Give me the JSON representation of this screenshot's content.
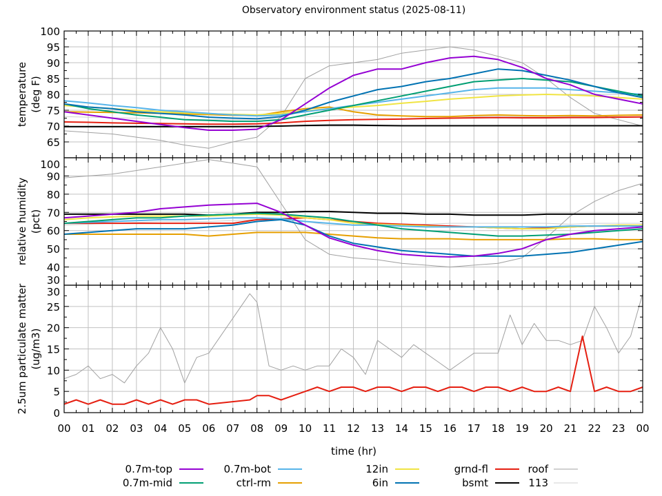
{
  "chart_data": [
    {
      "type": "line",
      "title": "Observatory environment status (2025-08-11)",
      "panel": "temperature",
      "ylabel": [
        "temperature",
        "(deg F)"
      ],
      "ylim": [
        60,
        100
      ],
      "yticks": [
        65,
        70,
        75,
        80,
        85,
        90,
        95,
        100
      ],
      "x": [
        0,
        1,
        2,
        3,
        4,
        5,
        6,
        7,
        8,
        9,
        10,
        11,
        12,
        13,
        14,
        15,
        16,
        17,
        18,
        19,
        20,
        21,
        22,
        23,
        24
      ],
      "series": [
        {
          "name": "0.7m-top",
          "values": [
            74.5,
            73.5,
            72.5,
            71.5,
            70.5,
            69.5,
            68.7,
            68.7,
            69,
            72,
            77,
            82,
            86,
            88,
            88,
            90,
            91.5,
            92,
            91,
            88.5,
            85,
            83,
            80,
            78.5,
            77
          ]
        },
        {
          "name": "0.7m-mid",
          "values": [
            77,
            75.5,
            74.5,
            73.5,
            72.8,
            72,
            71.8,
            71.5,
            71.5,
            72,
            73.5,
            75,
            76.5,
            78,
            79.5,
            81,
            82.5,
            84,
            84.5,
            85,
            84.5,
            84,
            82.5,
            81,
            79.5
          ]
        },
        {
          "name": "0.7m-bot",
          "values": [
            78,
            77.3,
            76.5,
            75.8,
            75,
            74.5,
            74,
            73.5,
            73.2,
            73.5,
            74.5,
            75.5,
            76.5,
            77.5,
            78.5,
            79.5,
            80.5,
            81.5,
            82,
            82,
            82,
            81.5,
            81,
            80.5,
            80
          ]
        },
        {
          "name": "ctrl-rm",
          "values": [
            74.5,
            74.4,
            74.3,
            74.2,
            74,
            73.8,
            73.6,
            73.4,
            73.3,
            74.5,
            75.5,
            76,
            74.5,
            73.5,
            73.2,
            73,
            73,
            73.3,
            73.5,
            73.3,
            73.2,
            73.3,
            73.2,
            73.4,
            73.5
          ]
        },
        {
          "name": "12in",
          "values": [
            76.5,
            76,
            75.5,
            75,
            74.5,
            74.2,
            73.9,
            73.7,
            73.5,
            74,
            74.8,
            75.5,
            76,
            76.5,
            77.2,
            77.8,
            78.5,
            79,
            79.5,
            79.8,
            80,
            79.8,
            79.5,
            79,
            78.5
          ]
        },
        {
          "name": "6in",
          "values": [
            77,
            76,
            75.5,
            74.5,
            74,
            73.5,
            72.8,
            72.5,
            72.3,
            73,
            75,
            77.5,
            79.5,
            81.5,
            82.5,
            84,
            85,
            86.5,
            88,
            87.5,
            86,
            84.5,
            82.5,
            80.5,
            79
          ]
        },
        {
          "name": "grnd-fl",
          "values": [
            71.3,
            71.2,
            71,
            70.9,
            70.8,
            70.7,
            70.6,
            70.6,
            70.7,
            71,
            71.5,
            71.8,
            72,
            72.1,
            72.2,
            72.4,
            72.5,
            72.6,
            72.7,
            72.6,
            72.6,
            72.7,
            72.7,
            72.8,
            72.9
          ]
        },
        {
          "name": "bsmt",
          "values": [
            69.8,
            69.8,
            69.8,
            69.8,
            69.8,
            69.8,
            69.8,
            69.8,
            69.9,
            70,
            70.2,
            70.3,
            70.3,
            70.2,
            70.1,
            70.1,
            70.1,
            70.1,
            70.1,
            70.1,
            70.1,
            70.1,
            70.1,
            70.1,
            70.1
          ]
        },
        {
          "name": "roof",
          "values": [
            68.5,
            68,
            67.5,
            66.5,
            65.5,
            64,
            63,
            65,
            66.5,
            73,
            85,
            89,
            90,
            91,
            93,
            94,
            95,
            94,
            92,
            90,
            85,
            79,
            74,
            72,
            70
          ]
        },
        {
          "name": "113",
          "values": [
            73,
            72.8,
            72.6,
            72.5,
            72.3,
            72.2,
            72,
            72,
            72,
            72.5,
            73,
            73.2,
            73.3,
            73.2,
            73.2,
            73.1,
            73,
            73,
            73,
            73,
            73,
            73,
            73,
            73,
            72.8
          ]
        }
      ]
    },
    {
      "type": "line",
      "panel": "relative humidity",
      "ylabel": [
        "relative humidity",
        "(pct)"
      ],
      "ylim": [
        30,
        100
      ],
      "yticks": [
        30,
        40,
        50,
        60,
        70,
        80,
        90,
        100
      ],
      "x": [
        0,
        1,
        2,
        3,
        4,
        5,
        6,
        7,
        8,
        9,
        10,
        11,
        12,
        13,
        14,
        15,
        16,
        17,
        18,
        19,
        20,
        21,
        22,
        23,
        24
      ],
      "series": [
        {
          "name": "0.7m-top",
          "values": [
            67,
            68,
            69,
            70,
            72,
            73,
            74,
            74.5,
            75,
            70,
            63,
            56,
            52,
            49,
            47,
            46,
            45.5,
            46,
            47.5,
            50,
            55,
            58,
            60,
            61,
            62
          ]
        },
        {
          "name": "0.7m-mid",
          "values": [
            64,
            65,
            66,
            67,
            67,
            68,
            68.5,
            69,
            69.5,
            69,
            68,
            67,
            65,
            63,
            61,
            60,
            59,
            58,
            57,
            57,
            57.5,
            58,
            59,
            60,
            61
          ]
        },
        {
          "name": "0.7m-bot",
          "values": [
            64,
            64.5,
            65,
            65.5,
            66,
            66,
            66.5,
            67,
            67,
            66.5,
            65,
            64,
            63,
            63,
            62.5,
            62,
            62,
            62,
            62,
            62,
            62,
            62.5,
            62.5,
            62.5,
            62.5
          ]
        },
        {
          "name": "ctrl-rm",
          "values": [
            58,
            58,
            58,
            58,
            58,
            58,
            57,
            58,
            59,
            59,
            59,
            58,
            57,
            56,
            55.5,
            55.5,
            55.5,
            55,
            55,
            55,
            55,
            55.5,
            55.5,
            55,
            55
          ]
        },
        {
          "name": "12in",
          "values": [
            66,
            67,
            67.5,
            68,
            68,
            68,
            68,
            68.5,
            69,
            68.5,
            67,
            66,
            64,
            63.5,
            63,
            62.5,
            62,
            62,
            61.5,
            61,
            61,
            62,
            62.5,
            63,
            63
          ]
        },
        {
          "name": "6in",
          "values": [
            58,
            59,
            60,
            61,
            61,
            61,
            62,
            63,
            65,
            66,
            63,
            57,
            53,
            51,
            49,
            48,
            47,
            46,
            46,
            46,
            47,
            48,
            50,
            52,
            54
          ]
        },
        {
          "name": "grnd-fl",
          "values": [
            64,
            64,
            64,
            64,
            64,
            64,
            64,
            64,
            66,
            66.5,
            67,
            66,
            65,
            64,
            63.5,
            63,
            62.5,
            62,
            61.5,
            61,
            61.5,
            62,
            62.5,
            62.5,
            63
          ]
        },
        {
          "name": "bsmt",
          "values": [
            69,
            69,
            69,
            69,
            69,
            69,
            68.5,
            69,
            70,
            70,
            70.5,
            70.5,
            70,
            69.5,
            69.5,
            69,
            69,
            68.5,
            68.5,
            68.5,
            69,
            69,
            69,
            69,
            69
          ]
        },
        {
          "name": "roof",
          "values": [
            89,
            90,
            91,
            93,
            95,
            97,
            99,
            97,
            95,
            75,
            55,
            47,
            45,
            44,
            42,
            41,
            40,
            41,
            42,
            45,
            56,
            68,
            76,
            82,
            86
          ]
        },
        {
          "name": "113",
          "values": [
            63,
            63.5,
            64,
            64.5,
            65,
            65,
            65,
            65.5,
            66,
            66,
            65,
            63,
            63,
            64,
            63,
            63.5,
            64,
            64,
            64,
            64,
            64,
            63.5,
            64,
            64,
            64
          ]
        }
      ]
    },
    {
      "type": "line",
      "panel": "2.5um particulate matter",
      "ylabel": [
        "2.5um particulate matter",
        "(ug/m3)"
      ],
      "xlabel": "time (hr)",
      "ylim": [
        0,
        30
      ],
      "yticks": [
        0,
        5,
        10,
        15,
        20,
        25,
        30
      ],
      "xticks": [
        "00",
        "01",
        "02",
        "03",
        "04",
        "05",
        "06",
        "07",
        "08",
        "09",
        "10",
        "11",
        "12",
        "13",
        "14",
        "15",
        "16",
        "17",
        "18",
        "19",
        "20",
        "21",
        "22",
        "23",
        "00"
      ],
      "x": [
        0,
        0.5,
        1,
        1.5,
        2,
        2.5,
        3,
        3.5,
        4,
        4.5,
        5,
        5.5,
        6,
        7.7,
        8,
        8.5,
        9,
        9.5,
        10,
        10.5,
        11,
        11.5,
        12,
        12.5,
        13,
        13.5,
        14,
        14.5,
        15,
        15.5,
        16,
        16.5,
        17,
        17.5,
        18,
        18.5,
        19,
        19.5,
        20,
        20.5,
        21,
        21.5,
        22,
        22.5,
        23,
        23.5,
        24
      ],
      "series": [
        {
          "name": "grnd-fl",
          "values": [
            2,
            3,
            2,
            3,
            2,
            2,
            3,
            2,
            3,
            2,
            3,
            3,
            2,
            3,
            4,
            4,
            3,
            4,
            5,
            6,
            5,
            6,
            6,
            5,
            6,
            6,
            5,
            6,
            6,
            5,
            6,
            6,
            5,
            6,
            6,
            5,
            6,
            5,
            5,
            6,
            5,
            18,
            5,
            6,
            5,
            5,
            6
          ]
        },
        {
          "name": "roof",
          "values": [
            8,
            9,
            11,
            8,
            9,
            7,
            11,
            14,
            20,
            15,
            7,
            13,
            14,
            28,
            26,
            11,
            10,
            11,
            10,
            11,
            11,
            15,
            13,
            9,
            17,
            15,
            13,
            16,
            14,
            12,
            10,
            12,
            14,
            14,
            14,
            23,
            16,
            21,
            17,
            17,
            16,
            17,
            25,
            20,
            14,
            18,
            28
          ]
        }
      ]
    }
  ],
  "legend": {
    "placement": "bottom",
    "entries": [
      {
        "name": "0.7m-top",
        "color": "#9400d3"
      },
      {
        "name": "0.7m-mid",
        "color": "#009e73"
      },
      {
        "name": "0.7m-bot",
        "color": "#56b4e9"
      },
      {
        "name": "ctrl-rm",
        "color": "#e69f00"
      },
      {
        "name": "12in",
        "color": "#f0e442"
      },
      {
        "name": "6in",
        "color": "#0072b2"
      },
      {
        "name": "grnd-fl",
        "color": "#e51e10"
      },
      {
        "name": "bsmt",
        "color": "#000000"
      },
      {
        "name": "roof",
        "color": "#a0a0a0"
      },
      {
        "name": "113",
        "color": "#d0d0d0"
      }
    ]
  }
}
